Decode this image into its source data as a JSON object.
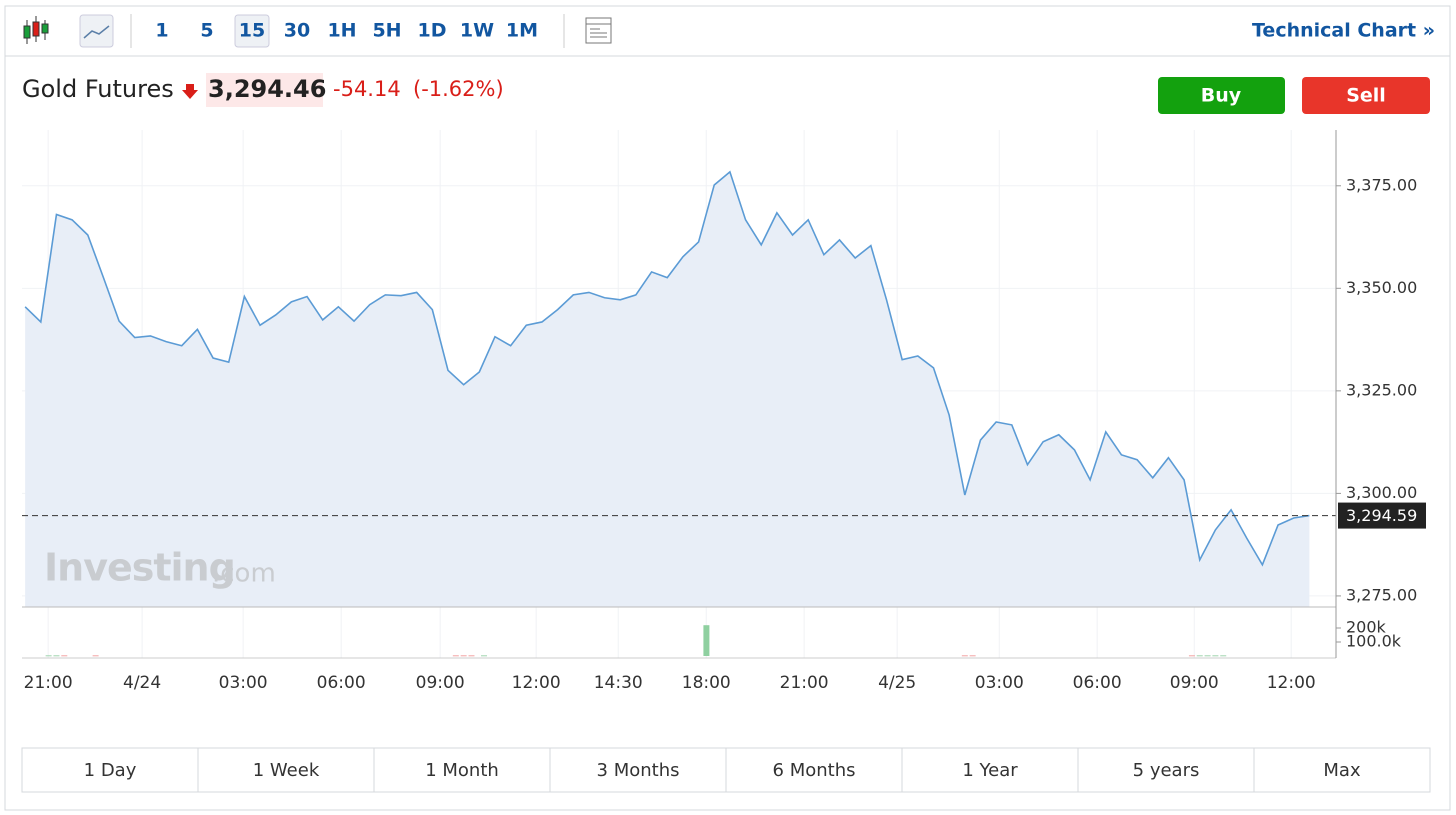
{
  "toolbar": {
    "intervals": [
      "1",
      "5",
      "15",
      "30",
      "1H",
      "5H",
      "1D",
      "1W",
      "1M"
    ],
    "selected": 2,
    "technical_link": "Technical Chart »"
  },
  "quote": {
    "name": "Gold Futures",
    "price": "3,294.46",
    "change": "-54.14",
    "change_pct": "(-1.62%)"
  },
  "buttons": {
    "buy": "Buy",
    "sell": "Sell"
  },
  "watermark": {
    "brand": "Investing",
    "suffix": ".com"
  },
  "chart": {
    "type": "area",
    "color": "#5b9bd5",
    "fill": "#e8eef7",
    "grid": true,
    "x": [
      0,
      1,
      2,
      3,
      4,
      5,
      6,
      7,
      8,
      9,
      10,
      11,
      12,
      13,
      14,
      15,
      16,
      17,
      18,
      19,
      20,
      21,
      22,
      23,
      24,
      25,
      26,
      27,
      28,
      29,
      30,
      31,
      32,
      33,
      34,
      35,
      36,
      37,
      38,
      39,
      40,
      41,
      42,
      43,
      44,
      45,
      46,
      47,
      48,
      49,
      50,
      51,
      52,
      53,
      54,
      55,
      56,
      57,
      58,
      59,
      60,
      61,
      62,
      63,
      64,
      65,
      66,
      67,
      68,
      69,
      70,
      71,
      72,
      73,
      74,
      75,
      76,
      77,
      78,
      79,
      80,
      81,
      82
    ],
    "values": [
      3345.5,
      3341.8,
      3368,
      3366.7,
      3363,
      3352.6,
      3342,
      3338,
      3338.4,
      3337,
      3336,
      3340,
      3333,
      3332,
      3348,
      3341,
      3343.5,
      3346.7,
      3348,
      3342.3,
      3345.5,
      3342,
      3346,
      3348.4,
      3348.2,
      3349,
      3344.8,
      3330,
      3326.5,
      3329.6,
      3338.2,
      3336,
      3341,
      3341.8,
      3344.8,
      3348.4,
      3349,
      3347.7,
      3347.2,
      3348.4,
      3354,
      3352.6,
      3357.7,
      3361.3,
      3375.2,
      3378.4,
      3366.7,
      3360.6,
      3368.4,
      3363,
      3366.7,
      3358.2,
      3361.8,
      3357.4,
      3360.4,
      3347.2,
      3332.6,
      3333.5,
      3330.6,
      3319.1,
      3299.6,
      3313,
      3317.4,
      3316.7,
      3307,
      3312.6,
      3314.3,
      3310.6,
      3303.3,
      3315,
      3309.4,
      3308.2,
      3303.8,
      3308.7,
      3303.3,
      3283.8,
      3291.1,
      3296,
      3289.1,
      3282.6,
      3292.3,
      3294,
      3294.6
    ],
    "xlim": [
      -0.2,
      83.7
    ],
    "ylim": [
      3272.3,
      3388.6
    ],
    "yticks": [
      {
        "value": 3275,
        "label": "3,275.00"
      },
      {
        "value": 3300,
        "label": "3,300.00"
      },
      {
        "value": 3325,
        "label": "3,325.00"
      },
      {
        "value": 3350,
        "label": "3,350.00"
      },
      {
        "value": 3375,
        "label": "3,375.00"
      }
    ],
    "xticks": [
      {
        "value": 1.47,
        "label": "21:00"
      },
      {
        "value": 7.47,
        "label": "4/24"
      },
      {
        "value": 13.92,
        "label": "03:00"
      },
      {
        "value": 20.18,
        "label": "06:00"
      },
      {
        "value": 26.5,
        "label": "09:00"
      },
      {
        "value": 32.63,
        "label": "12:00"
      },
      {
        "value": 37.87,
        "label": "14:30"
      },
      {
        "value": 43.49,
        "label": "18:00"
      },
      {
        "value": 49.74,
        "label": "21:00"
      },
      {
        "value": 55.68,
        "label": "4/25"
      },
      {
        "value": 62.2,
        "label": "03:00"
      },
      {
        "value": 68.45,
        "label": "06:00"
      },
      {
        "value": 74.65,
        "label": "09:00"
      },
      {
        "value": 80.84,
        "label": "12:00"
      }
    ],
    "last_price": {
      "value": 3294.59,
      "label": "3,294.59"
    },
    "volume": {
      "x": [
        1.5,
        2,
        2.5,
        4.5,
        27.5,
        28,
        28.5,
        29.3,
        43.5,
        60,
        60.5,
        74.5,
        75,
        75.5,
        76,
        76.5
      ],
      "values": [
        5000,
        5000,
        5000,
        5000,
        5000,
        5000,
        5000,
        5000,
        220000,
        5000,
        5000,
        5000,
        5000,
        5000,
        5000,
        5000
      ],
      "colors": [
        "#9fd4ae",
        "#9fd4ae",
        "#f3a3a3",
        "#f3a3a3",
        "#f3a3a3",
        "#f3a3a3",
        "#f3a3a3",
        "#9fd4ae",
        "#8fd0a0",
        "#f3a3a3",
        "#f3a3a3",
        "#f3a3a3",
        "#9fd4ae",
        "#9fd4ae",
        "#9fd4ae",
        "#9fd4ae"
      ],
      "ylim": [
        0,
        350000
      ],
      "yticks": [
        {
          "value": 100000,
          "label": "100.0k"
        },
        {
          "value": 200000,
          "label": "200k"
        }
      ]
    }
  },
  "ranges": [
    "1 Day",
    "1 Week",
    "1 Month",
    "3 Months",
    "6 Months",
    "1 Year",
    "5 years",
    "Max"
  ]
}
